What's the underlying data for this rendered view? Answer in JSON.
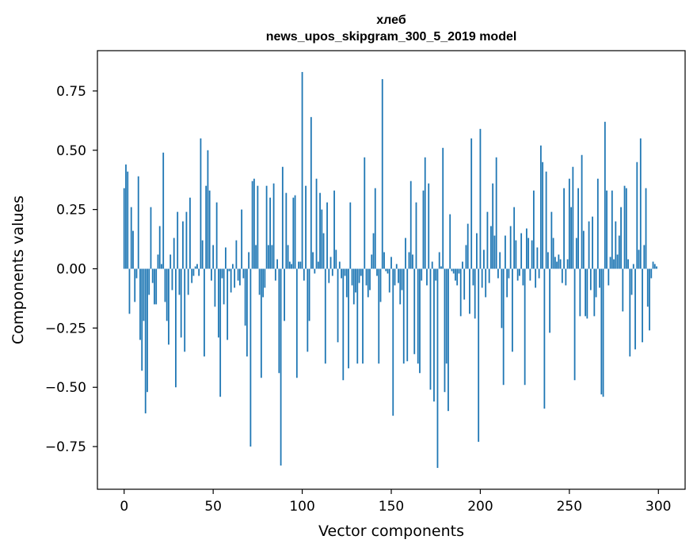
{
  "chart_data": {
    "type": "bar",
    "title": "хлеб",
    "subtitle": "news_upos_skipgram_300_5_2019 model",
    "xlabel": "Vector components",
    "ylabel": "Components values",
    "xlim": [
      -15,
      315
    ],
    "ylim": [
      -0.93,
      0.92
    ],
    "xticks": [
      0,
      50,
      100,
      150,
      200,
      250,
      300
    ],
    "xtick_labels": [
      "0",
      "50",
      "100",
      "150",
      "200",
      "250",
      "300"
    ],
    "yticks": [
      -0.75,
      -0.5,
      -0.25,
      0.0,
      0.25,
      0.5,
      0.75
    ],
    "ytick_labels": [
      "−0.75",
      "−0.50",
      "−0.25",
      "0.00",
      "0.25",
      "0.50",
      "0.75"
    ],
    "bar_color": "#1f77b4",
    "grid": false,
    "categories_range": [
      0,
      299
    ],
    "values": [
      0.34,
      0.44,
      0.41,
      -0.19,
      0.26,
      0.16,
      -0.14,
      -0.04,
      0.39,
      -0.3,
      -0.43,
      -0.22,
      -0.61,
      -0.52,
      -0.11,
      0.26,
      -0.06,
      -0.15,
      -0.15,
      0.06,
      0.18,
      0.02,
      0.49,
      -0.14,
      -0.22,
      -0.32,
      0.06,
      -0.09,
      0.13,
      -0.5,
      0.24,
      -0.11,
      -0.29,
      0.2,
      -0.35,
      0.24,
      -0.11,
      0.3,
      -0.06,
      -0.03,
      0.01,
      0.02,
      -0.03,
      0.55,
      0.12,
      -0.37,
      0.35,
      0.5,
      0.33,
      -0.05,
      0.1,
      -0.16,
      0.28,
      -0.29,
      -0.54,
      -0.04,
      -0.15,
      0.09,
      -0.3,
      -0.01,
      -0.1,
      0.02,
      -0.08,
      0.12,
      -0.05,
      -0.07,
      0.25,
      -0.04,
      -0.24,
      -0.37,
      0.07,
      -0.75,
      0.37,
      0.38,
      0.1,
      0.35,
      -0.11,
      -0.46,
      -0.12,
      -0.08,
      0.35,
      0.1,
      0.3,
      0.1,
      0.36,
      -0.05,
      0.04,
      -0.44,
      -0.83,
      0.43,
      -0.22,
      0.32,
      0.1,
      0.03,
      0.02,
      0.3,
      0.31,
      -0.46,
      0.03,
      0.03,
      0.83,
      -0.05,
      0.35,
      -0.35,
      -0.22,
      0.64,
      0.07,
      -0.02,
      0.38,
      0.03,
      0.32,
      0.25,
      0.15,
      -0.4,
      0.28,
      -0.06,
      0.05,
      -0.03,
      0.33,
      0.08,
      -0.31,
      0.03,
      -0.04,
      -0.47,
      -0.03,
      -0.12,
      -0.42,
      0.28,
      -0.07,
      -0.15,
      -0.1,
      -0.4,
      -0.06,
      -0.03,
      -0.4,
      0.47,
      -0.07,
      -0.12,
      -0.09,
      0.06,
      0.15,
      0.34,
      -0.03,
      -0.4,
      -0.14,
      0.8,
      0.07,
      -0.01,
      -0.02,
      -0.1,
      0.05,
      -0.62,
      -0.07,
      0.02,
      -0.06,
      -0.15,
      -0.09,
      -0.4,
      0.13,
      -0.39,
      0.07,
      0.37,
      0.06,
      -0.36,
      0.28,
      -0.4,
      -0.44,
      -0.05,
      0.33,
      0.47,
      -0.07,
      0.36,
      -0.51,
      0.03,
      -0.56,
      -0.05,
      -0.84,
      0.07,
      0.01,
      0.51,
      -0.52,
      -0.4,
      -0.6,
      0.23,
      -0.01,
      -0.02,
      -0.05,
      -0.07,
      -0.02,
      -0.2,
      0.03,
      -0.13,
      0.1,
      0.19,
      -0.19,
      0.55,
      -0.07,
      -0.21,
      0.15,
      -0.73,
      0.59,
      -0.08,
      0.08,
      -0.12,
      0.24,
      -0.06,
      0.18,
      0.36,
      0.14,
      0.47,
      -0.04,
      0.07,
      -0.25,
      -0.49,
      0.14,
      -0.12,
      -0.04,
      0.18,
      -0.35,
      0.26,
      0.12,
      -0.05,
      -0.03,
      0.15,
      -0.07,
      -0.49,
      0.17,
      0.13,
      -0.05,
      0.12,
      0.33,
      -0.08,
      0.09,
      -0.04,
      0.52,
      0.45,
      -0.59,
      0.41,
      0.07,
      -0.27,
      0.24,
      0.13,
      0.05,
      0.03,
      0.06,
      0.04,
      -0.06,
      0.34,
      -0.07,
      0.04,
      0.38,
      0.26,
      0.43,
      -0.47,
      0.13,
      0.34,
      -0.2,
      0.48,
      0.16,
      -0.2,
      -0.21,
      0.2,
      -0.09,
      0.22,
      -0.2,
      -0.12,
      0.38,
      -0.08,
      -0.53,
      -0.54,
      0.62,
      0.33,
      -0.07,
      0.05,
      0.33,
      0.04,
      0.2,
      0.06,
      0.14,
      0.26,
      -0.18,
      0.35,
      0.34,
      0.04,
      -0.37,
      -0.11,
      0.02,
      -0.34,
      0.45,
      0.08,
      0.55,
      -0.31,
      0.1,
      0.34,
      -0.16,
      -0.26,
      -0.04,
      0.03,
      0.02,
      0.01
    ]
  }
}
